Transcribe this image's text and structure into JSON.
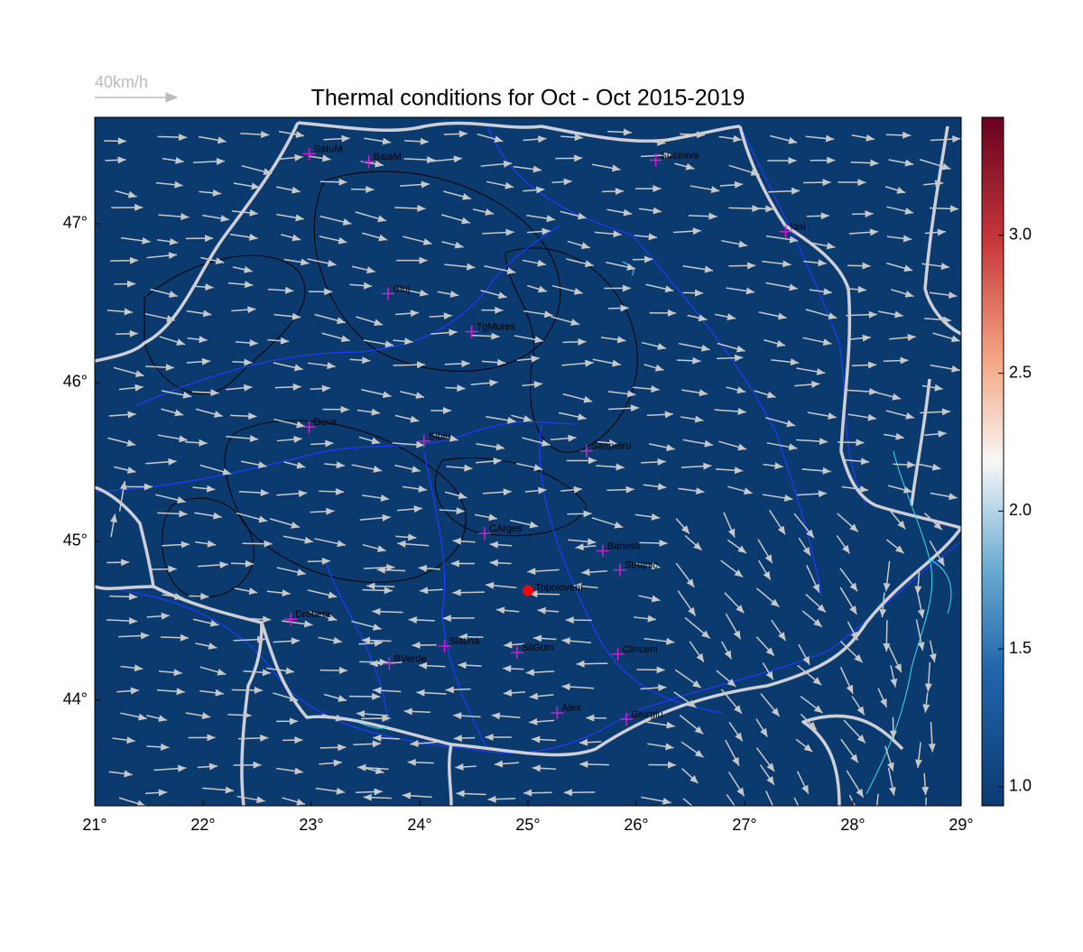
{
  "title": "Thermal conditions for Oct - Oct  2015-2019",
  "wind_legend": "40km/h",
  "xlim": [
    21,
    29
  ],
  "ylim": [
    43.335,
    47.67
  ],
  "xticks": [
    {
      "value": 21,
      "label": "21°"
    },
    {
      "value": 22,
      "label": "22°"
    },
    {
      "value": 23,
      "label": "23°"
    },
    {
      "value": 24,
      "label": "24°"
    },
    {
      "value": 25,
      "label": "25°"
    },
    {
      "value": 26,
      "label": "26°"
    },
    {
      "value": 27,
      "label": "27°"
    },
    {
      "value": 28,
      "label": "28°"
    },
    {
      "value": 29,
      "label": "29°"
    }
  ],
  "yticks": [
    {
      "value": 44,
      "label": "44°"
    },
    {
      "value": 45,
      "label": "45°"
    },
    {
      "value": 46,
      "label": "46°"
    },
    {
      "value": 47,
      "label": "47°"
    }
  ],
  "colorbar": {
    "lim": [
      0.931,
      3.428
    ],
    "ticks": [
      {
        "value": 1.0,
        "label": "1.0"
      },
      {
        "value": 1.5,
        "label": "1.5"
      },
      {
        "value": 2.0,
        "label": "2.0"
      },
      {
        "value": 2.5,
        "label": "2.5"
      },
      {
        "value": 3.0,
        "label": "3.0"
      }
    ]
  },
  "stations": [
    {
      "name": "SatuM",
      "lon": 22.98,
      "lat": 47.44
    },
    {
      "name": "BaiaM",
      "lon": 23.53,
      "lat": 47.39
    },
    {
      "name": "Suceava",
      "lon": 26.18,
      "lat": 47.4
    },
    {
      "name": "Iasi",
      "lon": 27.38,
      "lat": 46.95
    },
    {
      "name": "Cluj",
      "lon": 23.71,
      "lat": 46.56
    },
    {
      "name": "TgMures",
      "lon": 24.48,
      "lat": 46.32
    },
    {
      "name": "Deva",
      "lon": 22.98,
      "lat": 45.72
    },
    {
      "name": "Sibiu",
      "lon": 24.04,
      "lat": 45.63
    },
    {
      "name": "Sanpetru",
      "lon": 25.54,
      "lat": 45.57
    },
    {
      "name": "CArges",
      "lon": 24.6,
      "lat": 45.05
    },
    {
      "name": "Banesti",
      "lon": 25.69,
      "lat": 44.94
    },
    {
      "name": "Strejnic",
      "lon": 25.85,
      "lat": 44.82
    },
    {
      "name": "Drobeta",
      "lon": 22.81,
      "lat": 44.51
    },
    {
      "name": "Slatina",
      "lon": 24.23,
      "lat": 44.34
    },
    {
      "name": "SilGum",
      "lon": 24.9,
      "lat": 44.3
    },
    {
      "name": "Clinceni",
      "lon": 25.83,
      "lat": 44.29
    },
    {
      "name": "BVerde",
      "lon": 23.72,
      "lat": 44.23
    },
    {
      "name": "Alex",
      "lon": 25.27,
      "lat": 43.92
    },
    {
      "name": "Giurgiu",
      "lon": 25.91,
      "lat": 43.88
    }
  ],
  "highlight": {
    "name": "Topoloveni",
    "lon": 25.0,
    "lat": 44.69,
    "color": "#ff0000"
  }
}
